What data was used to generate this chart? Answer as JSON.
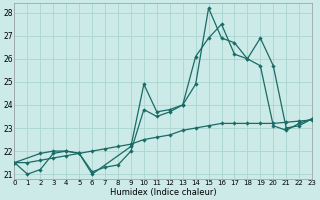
{
  "xlabel": "Humidex (Indice chaleur)",
  "bg_color": "#cceae7",
  "line_color": "#1a6b65",
  "grid_color": "#aad4d0",
  "xlim": [
    0,
    23
  ],
  "ylim": [
    20.8,
    28.4
  ],
  "xticks": [
    0,
    1,
    2,
    3,
    4,
    5,
    6,
    7,
    8,
    9,
    10,
    11,
    12,
    13,
    14,
    15,
    16,
    17,
    18,
    19,
    20,
    21,
    22,
    23
  ],
  "yticks": [
    21,
    22,
    23,
    24,
    25,
    26,
    27,
    28
  ],
  "line1_x": [
    0,
    1,
    2,
    3,
    4,
    5,
    6,
    7,
    8,
    9,
    10,
    11,
    12,
    13,
    14,
    15,
    16,
    17,
    18,
    19,
    20,
    21,
    22,
    23
  ],
  "line1_y": [
    21.5,
    21.5,
    21.6,
    21.7,
    21.8,
    21.9,
    22.0,
    22.1,
    22.2,
    22.3,
    22.5,
    22.6,
    22.7,
    22.9,
    23.0,
    23.1,
    23.2,
    23.2,
    23.2,
    23.2,
    23.2,
    23.25,
    23.3,
    23.35
  ],
  "line2_x": [
    0,
    1,
    2,
    3,
    4,
    5,
    6,
    7,
    8,
    9,
    10,
    11,
    12,
    13,
    14,
    15,
    16,
    17,
    18,
    19,
    20,
    21,
    22,
    23
  ],
  "line2_y": [
    21.5,
    21.0,
    21.2,
    21.9,
    22.0,
    21.9,
    21.1,
    21.3,
    21.4,
    22.0,
    23.8,
    23.5,
    23.7,
    24.0,
    24.9,
    28.2,
    26.9,
    26.7,
    26.0,
    25.7,
    23.1,
    22.9,
    23.2,
    23.4
  ],
  "line3_x": [
    0,
    2,
    3,
    4,
    5,
    6,
    9,
    10,
    11,
    12,
    13,
    14,
    15,
    16,
    17,
    18,
    19,
    20,
    21,
    22,
    23
  ],
  "line3_y": [
    21.5,
    21.9,
    22.0,
    22.0,
    21.9,
    21.0,
    22.2,
    24.9,
    23.7,
    23.8,
    24.0,
    26.1,
    26.9,
    27.5,
    26.2,
    26.0,
    26.9,
    25.7,
    23.0,
    23.1,
    23.4
  ]
}
